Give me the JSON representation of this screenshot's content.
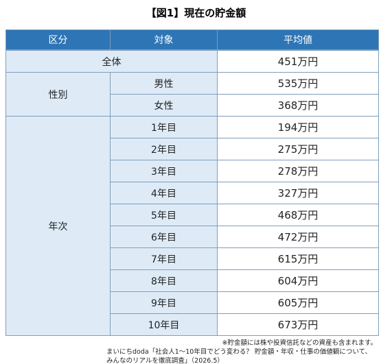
{
  "title": "【図1】現在の貯金額",
  "table": {
    "header": [
      "区分",
      "対象",
      "平均値"
    ],
    "total": {
      "label": "全体",
      "value": "451万円"
    },
    "groups": [
      {
        "label": "性別",
        "rows": [
          {
            "target": "男性",
            "value": "535万円"
          },
          {
            "target": "女性",
            "value": "368万円"
          }
        ]
      },
      {
        "label": "年次",
        "rows": [
          {
            "target": "1年目",
            "value": "194万円"
          },
          {
            "target": "2年目",
            "value": "275万円"
          },
          {
            "target": "3年目",
            "value": "278万円"
          },
          {
            "target": "4年目",
            "value": "327万円"
          },
          {
            "target": "5年目",
            "value": "468万円"
          },
          {
            "target": "6年目",
            "value": "472万円"
          },
          {
            "target": "7年目",
            "value": "615万円"
          },
          {
            "target": "8年目",
            "value": "604万円"
          },
          {
            "target": "9年目",
            "value": "605万円"
          },
          {
            "target": "10年目",
            "value": "673万円"
          }
        ]
      }
    ]
  },
  "notes": [
    "※貯金額には株や投資信託などの資産も含まれます。",
    "まいにちdoda「社会人1～10年目でどう変わる？ 貯金額・年収・仕事の価値観について、",
    "みんなのリアルを徹底調査」（2026.5）"
  ]
}
